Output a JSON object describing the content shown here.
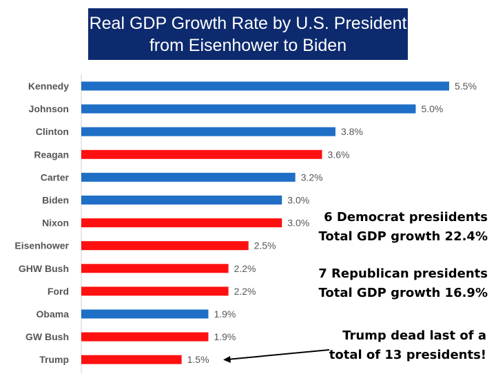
{
  "chart_data": {
    "type": "bar",
    "orientation": "horizontal",
    "title": [
      "Real GDP Growth Rate by U.S. President",
      "from Eisenhower to Biden"
    ],
    "categories": [
      "Kennedy",
      "Johnson",
      "Clinton",
      "Reagan",
      "Carter",
      "Biden",
      "Nixon",
      "Eisenhower",
      "GHW Bush",
      "Ford",
      "Obama",
      "GW Bush",
      "Trump"
    ],
    "values": [
      5.5,
      5.0,
      3.8,
      3.6,
      3.2,
      3.0,
      3.0,
      2.5,
      2.2,
      2.2,
      1.9,
      1.9,
      1.5
    ],
    "labels": [
      "5.5%",
      "5.0%",
      "3.8%",
      "3.6%",
      "3.2%",
      "3.0%",
      "3.0%",
      "2.5%",
      "2.2%",
      "2.2%",
      "1.9%",
      "1.9%",
      "1.5%"
    ],
    "party": [
      "D",
      "D",
      "D",
      "R",
      "D",
      "D",
      "R",
      "R",
      "R",
      "R",
      "D",
      "R",
      "R"
    ],
    "colors": {
      "D": "#1f6fc6",
      "R": "#ff1010"
    },
    "xlim": [
      0,
      5.5
    ],
    "grid": false,
    "annotations": {
      "democrat": [
        "6 Democrat presiidents",
        "Total GDP growth 22.4%"
      ],
      "republican": [
        "7 Republican presidents",
        "Total GDP growth 16.9%"
      ],
      "trump": [
        "Trump dead last of a",
        "total of 13 presidents!"
      ]
    }
  }
}
